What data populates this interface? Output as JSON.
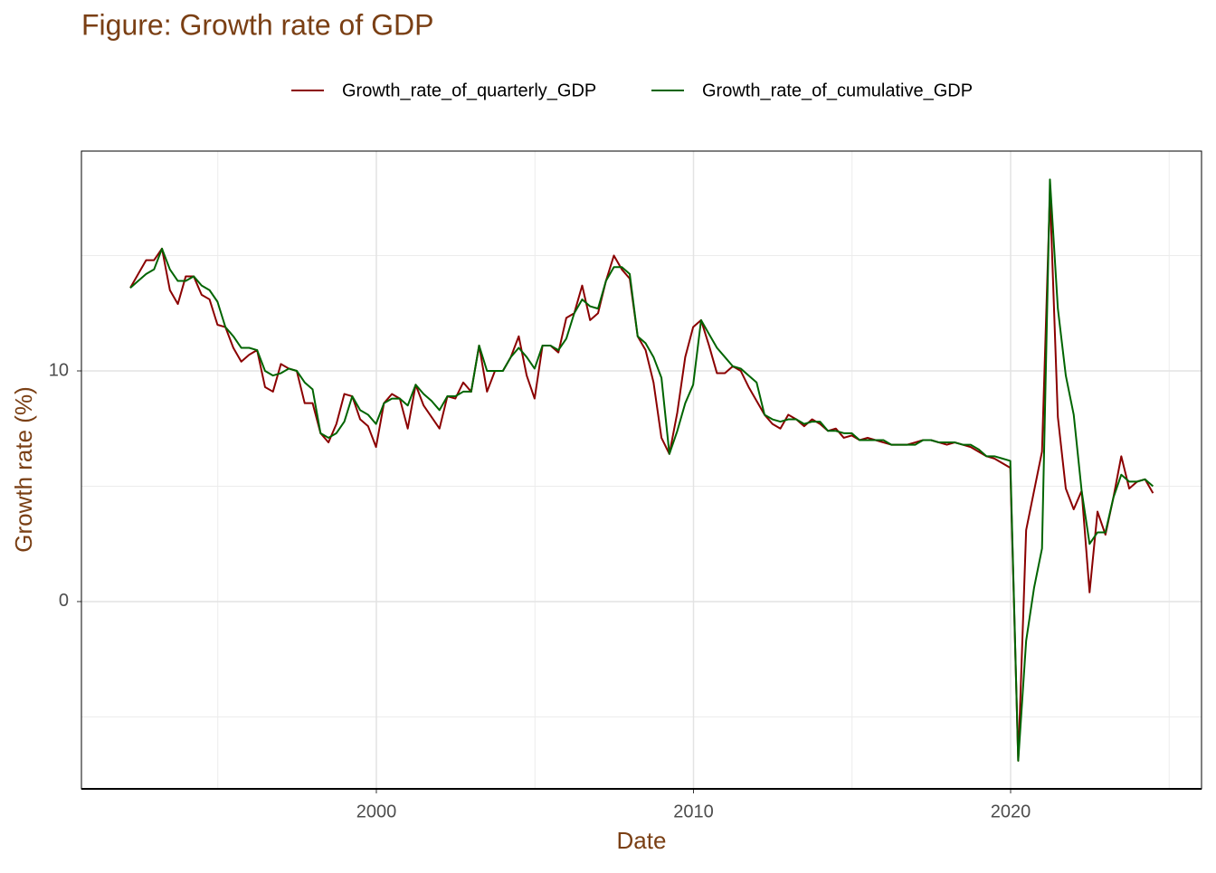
{
  "chart_data": {
    "type": "line",
    "title": "Figure: Growth rate of GDP",
    "xlabel": "Date",
    "ylabel": "Growth rate (%)",
    "legend_position": "top",
    "grid": true,
    "xlim": [
      1990.7,
      2026.02
    ],
    "xticks": [
      2000,
      2010,
      2020
    ],
    "minor_xticks": [
      1995,
      2005,
      2015,
      2025
    ],
    "ylim": [
      -8.12,
      19.53
    ],
    "yticks": [
      0,
      10
    ],
    "minor_yticks": [
      -5,
      5,
      15
    ],
    "x": [
      "1992Q1",
      "1992Q2",
      "1992Q3",
      "1992Q4",
      "1993Q1",
      "1993Q2",
      "1993Q3",
      "1993Q4",
      "1994Q1",
      "1994Q2",
      "1994Q3",
      "1994Q4",
      "1995Q1",
      "1995Q2",
      "1995Q3",
      "1995Q4",
      "1996Q1",
      "1996Q2",
      "1996Q3",
      "1996Q4",
      "1997Q1",
      "1997Q2",
      "1997Q3",
      "1997Q4",
      "1998Q1",
      "1998Q2",
      "1998Q3",
      "1998Q4",
      "1999Q1",
      "1999Q2",
      "1999Q3",
      "1999Q4",
      "2000Q1",
      "2000Q2",
      "2000Q3",
      "2000Q4",
      "2001Q1",
      "2001Q2",
      "2001Q3",
      "2001Q4",
      "2002Q1",
      "2002Q2",
      "2002Q3",
      "2002Q4",
      "2003Q1",
      "2003Q2",
      "2003Q3",
      "2003Q4",
      "2004Q1",
      "2004Q2",
      "2004Q3",
      "2004Q4",
      "2005Q1",
      "2005Q2",
      "2005Q3",
      "2005Q4",
      "2006Q1",
      "2006Q2",
      "2006Q3",
      "2006Q4",
      "2007Q1",
      "2007Q2",
      "2007Q3",
      "2007Q4",
      "2008Q1",
      "2008Q2",
      "2008Q3",
      "2008Q4",
      "2009Q1",
      "2009Q2",
      "2009Q3",
      "2009Q4",
      "2010Q1",
      "2010Q2",
      "2010Q3",
      "2010Q4",
      "2011Q1",
      "2011Q2",
      "2011Q3",
      "2011Q4",
      "2012Q1",
      "2012Q2",
      "2012Q3",
      "2012Q4",
      "2013Q1",
      "2013Q2",
      "2013Q3",
      "2013Q4",
      "2014Q1",
      "2014Q2",
      "2014Q3",
      "2014Q4",
      "2015Q1",
      "2015Q2",
      "2015Q3",
      "2015Q4",
      "2016Q1",
      "2016Q2",
      "2016Q3",
      "2016Q4",
      "2017Q1",
      "2017Q2",
      "2017Q3",
      "2017Q4",
      "2018Q1",
      "2018Q2",
      "2018Q3",
      "2018Q4",
      "2019Q1",
      "2019Q2",
      "2019Q3",
      "2019Q4",
      "2020Q1",
      "2020Q2",
      "2020Q3",
      "2020Q4",
      "2021Q1",
      "2021Q2",
      "2021Q3",
      "2021Q4",
      "2022Q1",
      "2022Q2",
      "2022Q3",
      "2022Q4",
      "2023Q1",
      "2023Q2",
      "2023Q3",
      "2023Q4",
      "2024Q1",
      "2024Q2"
    ],
    "series": [
      {
        "name": "Growth_rate_of_quarterly_GDP",
        "color": "#8b0000",
        "values": [
          13.6,
          14.2,
          14.8,
          14.8,
          15.3,
          13.5,
          12.9,
          14.1,
          14.1,
          13.3,
          13.1,
          12.0,
          11.9,
          11.0,
          10.4,
          10.7,
          10.9,
          9.3,
          9.1,
          10.3,
          10.1,
          10.0,
          8.6,
          8.6,
          7.3,
          6.9,
          7.7,
          9.0,
          8.9,
          7.9,
          7.6,
          6.7,
          8.6,
          9.0,
          8.8,
          7.5,
          9.4,
          8.5,
          8.0,
          7.5,
          8.9,
          8.8,
          9.5,
          9.1,
          11.1,
          9.1,
          10.0,
          10.0,
          10.6,
          11.5,
          9.8,
          8.8,
          11.1,
          11.1,
          10.8,
          12.3,
          12.5,
          13.7,
          12.2,
          12.5,
          13.9,
          15.0,
          14.4,
          14.0,
          11.5,
          10.9,
          9.5,
          7.1,
          6.4,
          8.2,
          10.6,
          11.9,
          12.2,
          11.1,
          9.9,
          9.9,
          10.2,
          10.0,
          9.3,
          8.7,
          8.1,
          7.7,
          7.5,
          8.1,
          7.9,
          7.6,
          7.9,
          7.7,
          7.4,
          7.5,
          7.1,
          7.2,
          7.0,
          7.1,
          7.0,
          6.9,
          6.8,
          6.8,
          6.8,
          6.9,
          7.0,
          7.0,
          6.9,
          6.8,
          6.9,
          6.8,
          6.7,
          6.5,
          6.3,
          6.2,
          6.0,
          5.8,
          -6.9,
          3.1,
          4.8,
          6.5,
          17.7,
          8.0,
          4.9,
          4.0,
          4.8,
          0.4,
          3.9,
          2.9,
          4.5,
          6.3,
          4.9,
          5.2,
          5.3,
          4.7
        ]
      },
      {
        "name": "Growth_rate_of_cumulative_GDP",
        "color": "#006400",
        "values": [
          13.6,
          13.9,
          14.2,
          14.4,
          15.3,
          14.4,
          13.9,
          13.9,
          14.1,
          13.7,
          13.5,
          13.0,
          11.9,
          11.5,
          11.0,
          11.0,
          10.9,
          10.0,
          9.8,
          9.9,
          10.1,
          10.0,
          9.5,
          9.2,
          7.3,
          7.1,
          7.3,
          7.8,
          8.9,
          8.3,
          8.1,
          7.7,
          8.6,
          8.8,
          8.8,
          8.5,
          9.4,
          9.0,
          8.7,
          8.3,
          8.9,
          8.9,
          9.1,
          9.1,
          11.1,
          10.0,
          10.0,
          10.0,
          10.6,
          11.0,
          10.6,
          10.1,
          11.1,
          11.1,
          10.9,
          11.4,
          12.5,
          13.1,
          12.8,
          12.7,
          13.9,
          14.5,
          14.5,
          14.2,
          11.5,
          11.2,
          10.6,
          9.7,
          6.4,
          7.4,
          8.6,
          9.4,
          12.2,
          11.6,
          11.0,
          10.6,
          10.2,
          10.1,
          9.8,
          9.5,
          8.1,
          7.9,
          7.8,
          7.9,
          7.9,
          7.7,
          7.8,
          7.8,
          7.4,
          7.4,
          7.3,
          7.3,
          7.0,
          7.0,
          7.0,
          7.0,
          6.8,
          6.8,
          6.8,
          6.8,
          7.0,
          7.0,
          6.9,
          6.9,
          6.9,
          6.8,
          6.8,
          6.6,
          6.3,
          6.3,
          6.2,
          6.1,
          -6.9,
          -1.7,
          0.6,
          2.3,
          18.3,
          12.7,
          9.8,
          8.1,
          4.8,
          2.5,
          3.0,
          3.0,
          4.5,
          5.5,
          5.2,
          5.2,
          5.3,
          5.0
        ]
      }
    ]
  }
}
